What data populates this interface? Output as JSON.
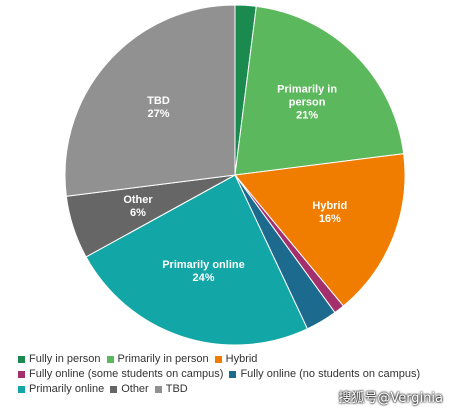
{
  "chart_data": {
    "type": "pie",
    "categories": [
      "Fully in person",
      "Primarily in person",
      "Hybrid",
      "Fully online (some students on campus)",
      "Fully online (no students on campus)",
      "Primarily online",
      "Other",
      "TBD"
    ],
    "values": [
      2,
      21,
      16,
      1,
      3,
      24,
      6,
      27
    ],
    "value_labels": [
      null,
      "21%",
      "16%",
      null,
      null,
      "24%",
      "6%",
      "27%"
    ],
    "colors": [
      "#1b8a4f",
      "#5cb85c",
      "#f07c00",
      "#a3306c",
      "#1c6a8e",
      "#13a6a6",
      "#666666",
      "#919191"
    ],
    "start_angle": 0,
    "direction": "clockwise",
    "legend": "bottom",
    "watermark": "搜狐号@Verginia"
  }
}
